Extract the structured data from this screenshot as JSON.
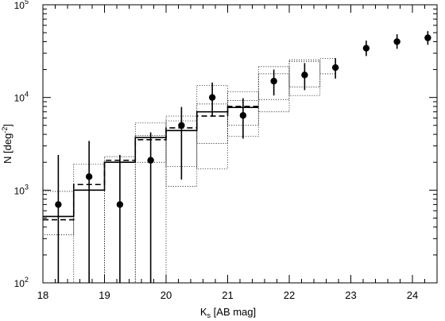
{
  "chart_data": {
    "type": "scatter",
    "title": "",
    "xlabel_main": "K",
    "xlabel_sub": "s",
    "xlabel_rest": " [AB mag]",
    "ylabel_main": "N [deg",
    "ylabel_sup": "-2",
    "ylabel_end": "]",
    "xlim": [
      18,
      24.4
    ],
    "ylim": [
      100,
      100000
    ],
    "yscale": "log",
    "grid": false,
    "x_ticks": [
      "18",
      "19",
      "20",
      "21",
      "22",
      "23",
      "24"
    ],
    "x_tick_values": [
      18,
      19,
      20,
      21,
      22,
      23,
      24
    ],
    "y_ticks": [
      {
        "value": 100,
        "base": "10",
        "exp": "2"
      },
      {
        "value": 1000,
        "base": "10",
        "exp": "3"
      },
      {
        "value": 10000,
        "base": "10",
        "exp": "4"
      },
      {
        "value": 100000,
        "base": "10",
        "exp": "5"
      }
    ],
    "points": [
      {
        "x": 18.25,
        "y": 700,
        "lo": 100,
        "hi": 2400
      },
      {
        "x": 18.75,
        "y": 1400,
        "lo": 100,
        "hi": 3400
      },
      {
        "x": 19.25,
        "y": 700,
        "lo": 100,
        "hi": 2400
      },
      {
        "x": 19.75,
        "y": 2100,
        "lo": 100,
        "hi": 4200
      },
      {
        "x": 20.25,
        "y": 5000,
        "lo": 1300,
        "hi": 7900
      },
      {
        "x": 20.75,
        "y": 10000,
        "lo": 6200,
        "hi": 14500
      },
      {
        "x": 21.25,
        "y": 6400,
        "lo": 3600,
        "hi": 9800
      },
      {
        "x": 21.75,
        "y": 15000,
        "lo": 10500,
        "hi": 20000
      },
      {
        "x": 22.25,
        "y": 17500,
        "lo": 12000,
        "hi": 23500
      },
      {
        "x": 22.75,
        "y": 21000,
        "lo": 16000,
        "hi": 26500
      },
      {
        "x": 23.25,
        "y": 34000,
        "lo": 28000,
        "hi": 41000
      },
      {
        "x": 23.75,
        "y": 40000,
        "lo": 33500,
        "hi": 48000
      },
      {
        "x": 24.25,
        "y": 44000,
        "lo": 37000,
        "hi": 52000
      }
    ],
    "solid_hist": {
      "edges": [
        18,
        18.5,
        19,
        19.5,
        20,
        20.5,
        21,
        21.5
      ],
      "values": [
        520,
        1000,
        2000,
        3700,
        4400,
        7000,
        7800
      ]
    },
    "dashed_hist": {
      "edges": [
        18,
        18.5,
        19,
        19.5,
        20,
        20.5,
        21,
        21.5
      ],
      "values": [
        480,
        1150,
        2100,
        3500,
        4700,
        6300,
        8000
      ]
    },
    "dotted_boxes": [
      {
        "x0": 18,
        "x1": 18.5,
        "y0": 330,
        "y1": 970
      },
      {
        "x0": 18.5,
        "x1": 19,
        "y0": 100,
        "y1": 1900
      },
      {
        "x0": 19,
        "x1": 19.5,
        "y0": 100,
        "y1": 2300
      },
      {
        "x0": 19.5,
        "x1": 20,
        "y0": 100,
        "y1": 3900
      },
      {
        "x0": 19.5,
        "x1": 20,
        "y0": 2000,
        "y1": 5300
      },
      {
        "x0": 20,
        "x1": 20.5,
        "y0": 1800,
        "y1": 5600
      },
      {
        "x0": 20,
        "x1": 20.5,
        "y0": 1100,
        "y1": 6300
      },
      {
        "x0": 20.5,
        "x1": 21,
        "y0": 1700,
        "y1": 13500
      },
      {
        "x0": 20.5,
        "x1": 21,
        "y0": 3200,
        "y1": 8500
      },
      {
        "x0": 21,
        "x1": 21.5,
        "y0": 3800,
        "y1": 9300
      },
      {
        "x0": 21,
        "x1": 21.5,
        "y0": 5000,
        "y1": 11500
      },
      {
        "x0": 21.5,
        "x1": 22,
        "y0": 7000,
        "y1": 18000
      },
      {
        "x0": 21.5,
        "x1": 22,
        "y0": 9500,
        "y1": 21500
      },
      {
        "x0": 22,
        "x1": 22.5,
        "y0": 10500,
        "y1": 25500
      },
      {
        "x0": 22,
        "x1": 22.5,
        "y0": 13000,
        "y1": 24500
      },
      {
        "x0": 22.5,
        "x1": 22.75,
        "y0": 18000,
        "y1": 26500
      }
    ]
  }
}
